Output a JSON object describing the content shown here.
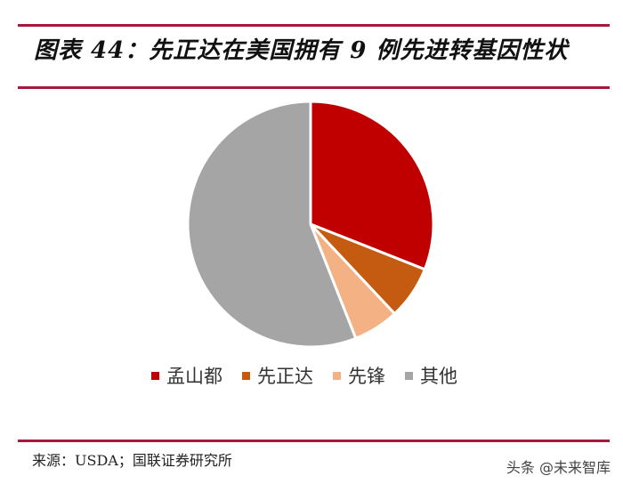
{
  "header": {
    "title": "图表 44：先正达在美国拥有 9 例先进转基因性状"
  },
  "footer": {
    "source": "来源：USDA；国联证券研究所",
    "watermark": "头条 @未来智库"
  },
  "colors": {
    "rule": "#A8173C"
  },
  "chart_data": {
    "type": "pie",
    "title": "先正达在美国拥有 9 例先进转基因性状",
    "categories": [
      "孟山都",
      "先正达",
      "先锋",
      "其他"
    ],
    "values": [
      31,
      7,
      6,
      56
    ],
    "colors": [
      "#C00000",
      "#C55A11",
      "#F4B183",
      "#A5A5A5"
    ],
    "start_angle_deg": 0,
    "direction": "clockwise",
    "legend_position": "bottom",
    "data_labels": false
  }
}
